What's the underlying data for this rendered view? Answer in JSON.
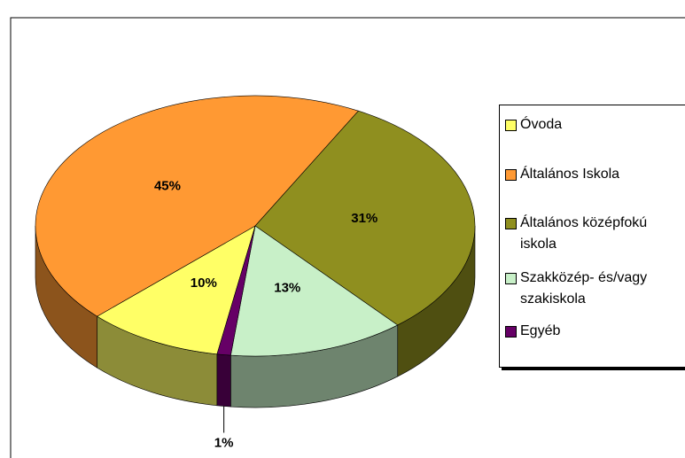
{
  "chart_data": {
    "type": "pie3d",
    "categories": [
      "Óvoda",
      "Általános Iskola",
      "Általános középfokú iskola",
      "Szakközép- és/vagy szakiskola",
      "Egyéb"
    ],
    "values": [
      10,
      45,
      31,
      13,
      1
    ],
    "value_labels": [
      "10%",
      "45%",
      "31%",
      "13%",
      "1%"
    ],
    "colors": [
      "#ffff66",
      "#ff9933",
      "#8f8f1f",
      "#c8f0c8",
      "#660066"
    ],
    "legend": "right"
  }
}
